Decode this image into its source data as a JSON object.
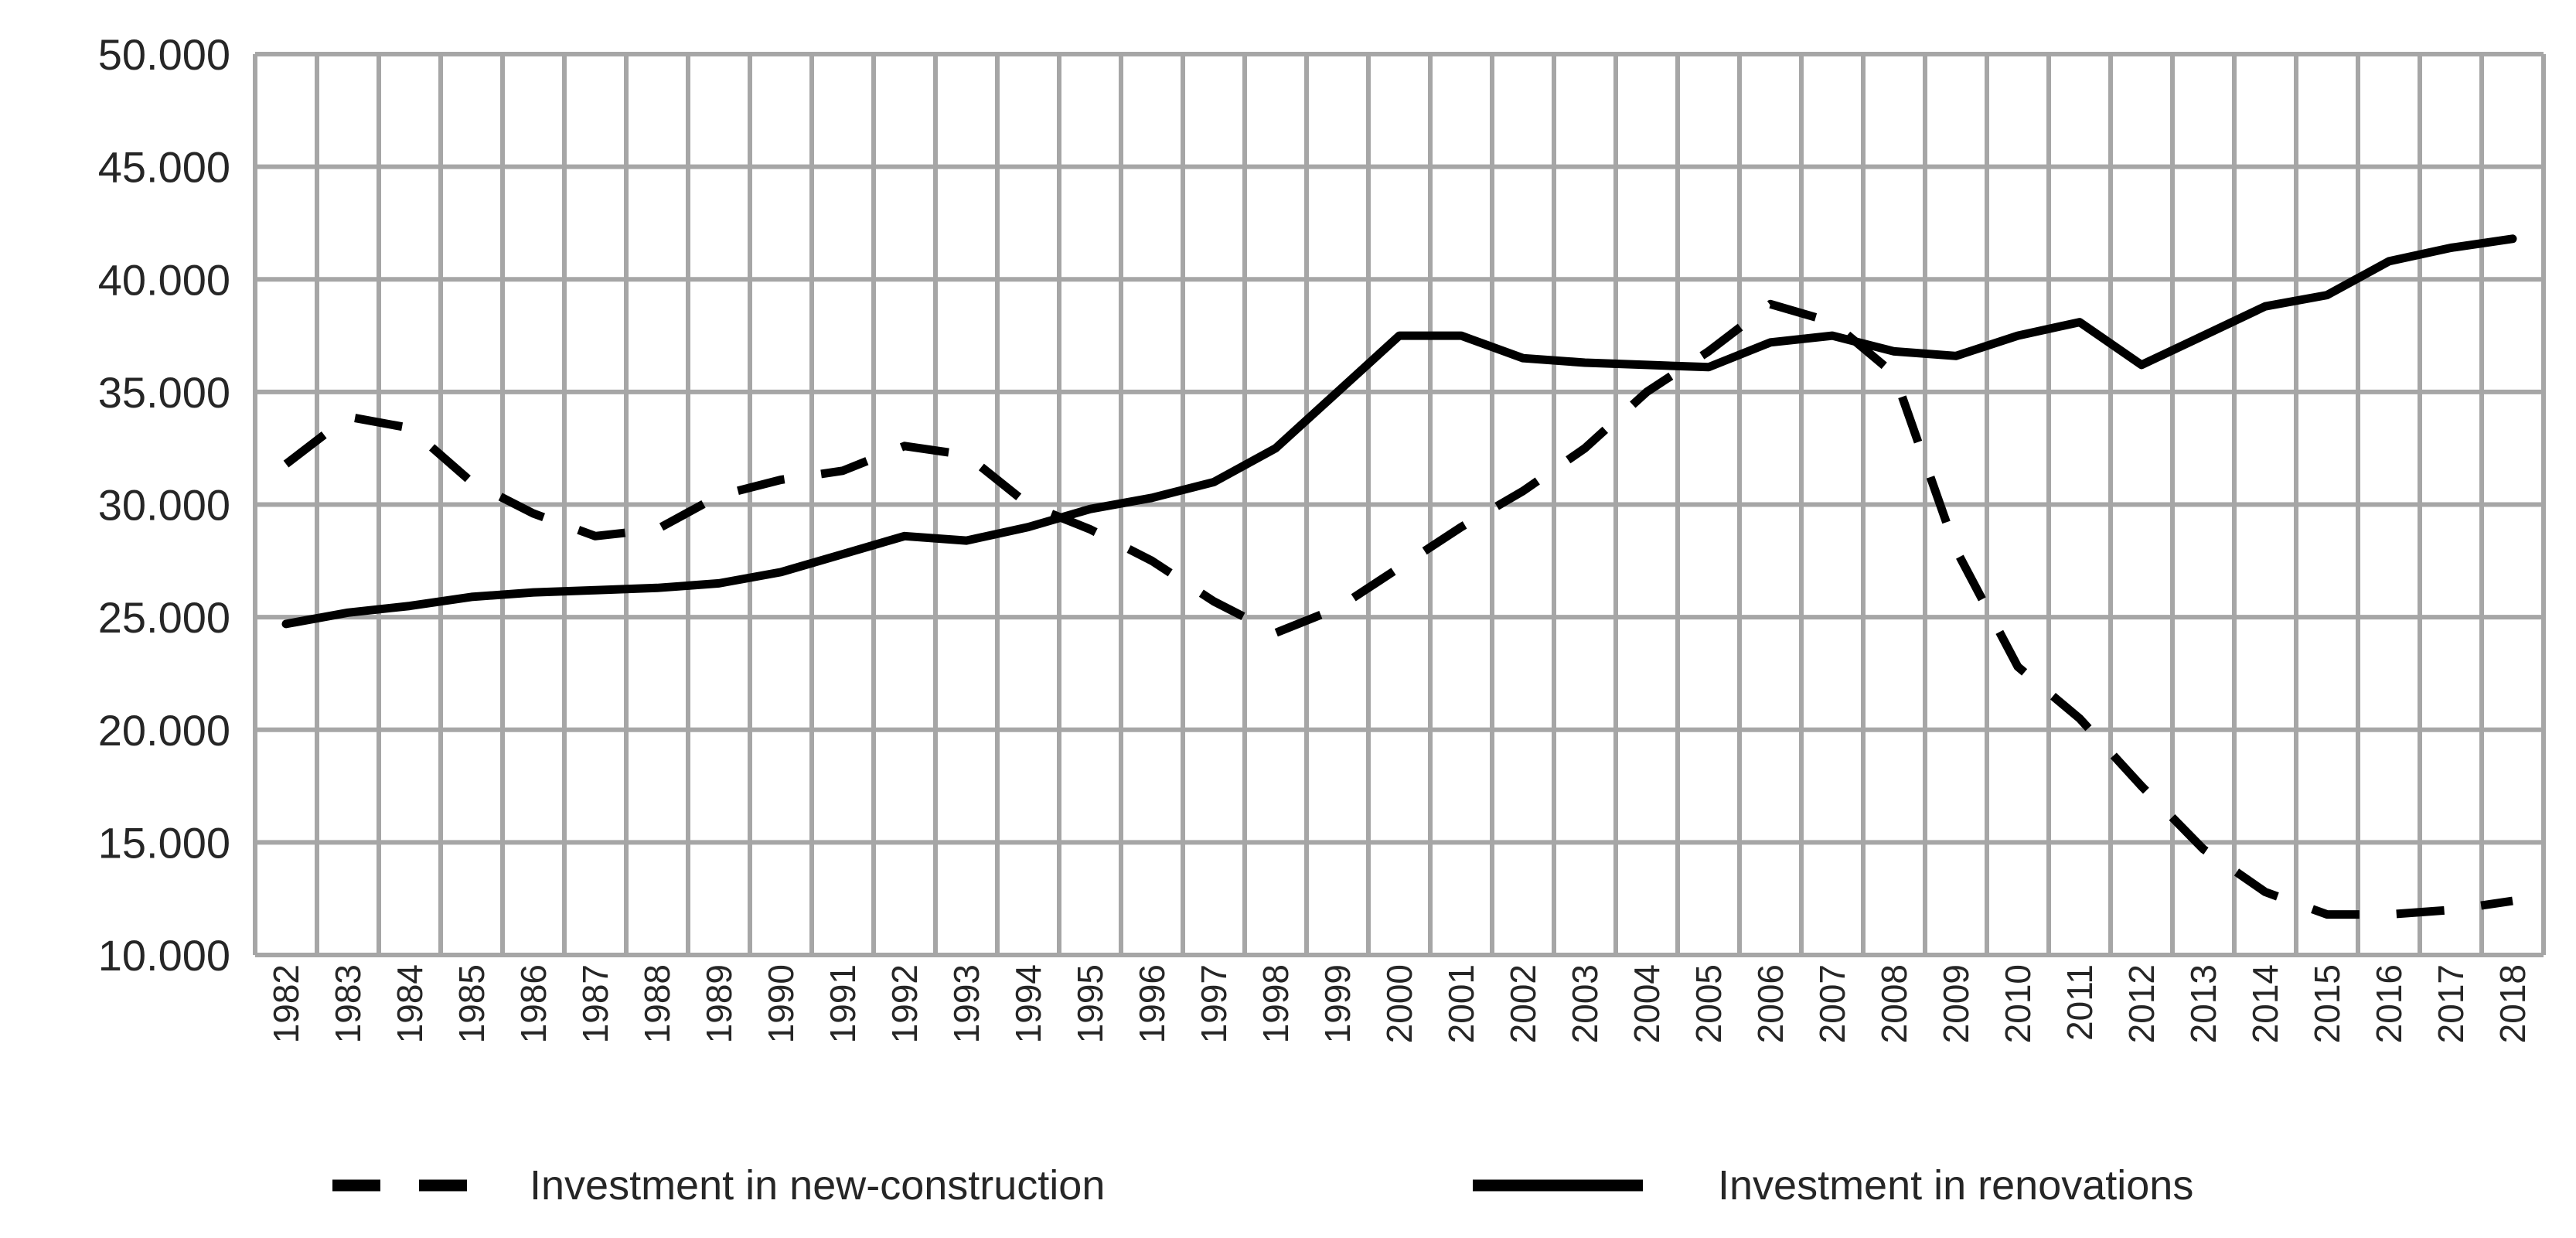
{
  "chart_data": {
    "type": "line",
    "title": "",
    "xlabel": "",
    "ylabel": "",
    "x": [
      "1982",
      "1983",
      "1984",
      "1985",
      "1986",
      "1987",
      "1988",
      "1989",
      "1990",
      "1991",
      "1992",
      "1993",
      "1994",
      "1995",
      "1996",
      "1997",
      "1998",
      "1999",
      "2000",
      "2001",
      "2002",
      "2003",
      "2004",
      "2005",
      "2006",
      "2007",
      "2008",
      "2009",
      "2010",
      "2011",
      "2012",
      "2013",
      "2014",
      "2015",
      "2016",
      "2017",
      "2018"
    ],
    "ylim": [
      10000,
      50000
    ],
    "yticks": [
      "10.000",
      "15.000",
      "20.000",
      "25.000",
      "30.000",
      "35.000",
      "40.000",
      "45.000",
      "50.000"
    ],
    "ytick_values": [
      10000,
      15000,
      20000,
      25000,
      30000,
      35000,
      40000,
      45000,
      50000
    ],
    "grid": true,
    "legend_position": "bottom",
    "series": [
      {
        "name": "Investment in new-construction",
        "style": "dashed",
        "color": "#000000",
        "values": [
          31800,
          33900,
          33400,
          31000,
          29600,
          28600,
          28900,
          30400,
          31100,
          31500,
          32600,
          32200,
          30000,
          28900,
          27500,
          25700,
          24300,
          25400,
          27200,
          29000,
          30600,
          32500,
          35000,
          36800,
          38900,
          38100,
          35800,
          28000,
          22800,
          20500,
          17500,
          14700,
          12800,
          11800,
          11800,
          12000,
          12400
        ]
      },
      {
        "name": "Investment in renovations",
        "style": "solid",
        "color": "#000000",
        "values": [
          24700,
          25200,
          25500,
          25900,
          26100,
          26200,
          26300,
          26500,
          27000,
          27800,
          28600,
          28400,
          29000,
          29800,
          30300,
          31000,
          32500,
          35000,
          37500,
          37500,
          36500,
          36300,
          36200,
          36100,
          37200,
          37500,
          36800,
          36600,
          37500,
          38100,
          36200,
          37500,
          38800,
          39300,
          40800,
          41400,
          41800
        ]
      }
    ]
  }
}
